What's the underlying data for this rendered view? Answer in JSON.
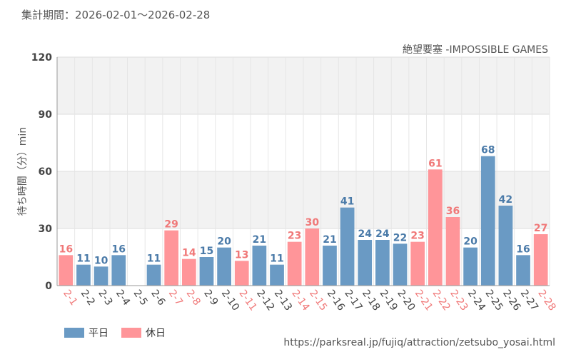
{
  "period_label": "集計期間：2026-02-01～2026-02-28",
  "source_url": "https://parksreal.jp/fujiq/attraction/zetsubo_yosai.html",
  "colors": {
    "weekday": "#6a9ac4",
    "holiday": "#ff9599",
    "weekday_label": "#4a7aa8",
    "holiday_label": "#f07878"
  },
  "chart_data": {
    "type": "bar",
    "title": "絶望要塞 -IMPOSSIBLE GAMES",
    "ylabel": "待ち時間（分）min",
    "xlabel": "",
    "ylim": [
      0,
      120
    ],
    "yticks": [
      0,
      30,
      60,
      90,
      120
    ],
    "grid": true,
    "legend_position": "bottom-left",
    "legend": [
      {
        "key": "weekday",
        "label": "平日"
      },
      {
        "key": "holiday",
        "label": "休日"
      }
    ],
    "categories": [
      "2-1",
      "2-2",
      "2-3",
      "2-4",
      "2-5",
      "2-6",
      "2-7",
      "2-8",
      "2-9",
      "2-10",
      "2-11",
      "2-12",
      "2-13",
      "2-14",
      "2-15",
      "2-16",
      "2-17",
      "2-18",
      "2-19",
      "2-20",
      "2-21",
      "2-22",
      "2-23",
      "2-24",
      "2-25",
      "2-26",
      "2-27",
      "2-28"
    ],
    "values": [
      16,
      11,
      10,
      16,
      null,
      11,
      29,
      14,
      15,
      20,
      13,
      21,
      11,
      23,
      30,
      21,
      41,
      24,
      24,
      22,
      23,
      61,
      36,
      20,
      68,
      42,
      16,
      27
    ],
    "day_type": [
      "holiday",
      "weekday",
      "weekday",
      "weekday",
      "weekday",
      "weekday",
      "holiday",
      "holiday",
      "weekday",
      "weekday",
      "holiday",
      "weekday",
      "weekday",
      "holiday",
      "holiday",
      "weekday",
      "weekday",
      "weekday",
      "weekday",
      "weekday",
      "holiday",
      "holiday",
      "holiday",
      "weekday",
      "weekday",
      "weekday",
      "weekday",
      "holiday"
    ]
  }
}
